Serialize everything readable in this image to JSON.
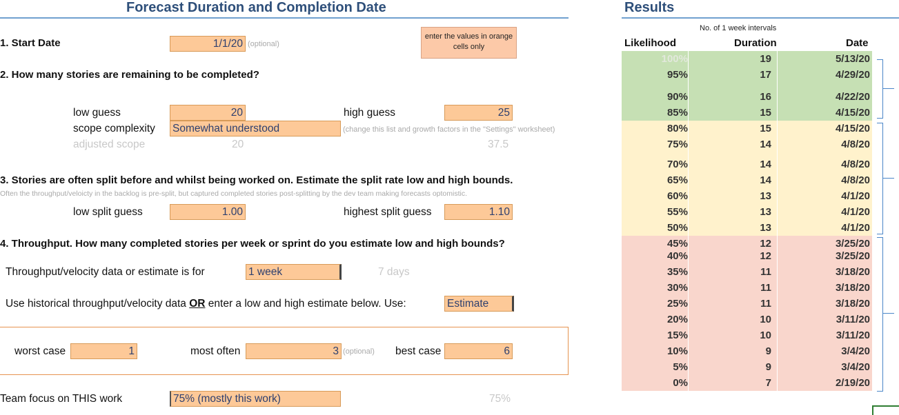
{
  "title": "Forecast Duration and Completion Date",
  "note": "enter the values in orange cells only",
  "q1": {
    "label": "1. Start Date",
    "value": "1/1/20",
    "hint": "(optional)"
  },
  "q2": {
    "label": "2. How many stories are remaining to be completed?",
    "low_label": "low guess",
    "low_value": "20",
    "high_label": "high guess",
    "high_value": "25",
    "complexity_label": "scope complexity",
    "complexity_value": "Somewhat understood",
    "complexity_hint": "(change this list and growth factors in the \"Settings\" worksheet)",
    "adjusted_label": "adjusted scope",
    "adjusted_low": "20",
    "adjusted_high": "37.5"
  },
  "q3": {
    "label": "3. Stories are often split before and whilst being worked on. Estimate the split rate low and high bounds.",
    "sub": "Often the throughput/veloicty in the backlog is pre-split, but captured completed stories post-splitting by the dev team making forecasts optomistic.",
    "low_label": "low split guess",
    "low_value": "1.00",
    "high_label": "highest split guess",
    "high_value": "1.10"
  },
  "q4": {
    "label": "4. Throughput. How many completed stories per week or sprint do you estimate low and high bounds?",
    "period_label": "Throughput/velocity data or estimate is for",
    "period_value": "1 week",
    "period_days": "7  days",
    "source_label_a": "Use historical throughput/velocity data ",
    "source_label_or": "OR",
    "source_label_b": " enter a low and high estimate below. Use:",
    "source_value": "Estimate",
    "worst_label": "worst case",
    "worst_value": "1",
    "often_label": "most often",
    "often_value": "3",
    "often_hint": "(optional)",
    "best_label": "best case",
    "best_value": "6"
  },
  "focus": {
    "label": "Team focus on THIS work",
    "value": "75% (mostly this work)",
    "pct": "75%"
  },
  "results": {
    "title": "Results",
    "interval_note": "No. of 1 week intervals",
    "col_likelihood": "Likelihood",
    "col_duration": "Duration",
    "col_date": "Date",
    "rows": [
      {
        "likelihood": "100%",
        "duration": "19",
        "date": "5/13/20",
        "band": "g"
      },
      {
        "likelihood": "95%",
        "duration": "17",
        "date": "4/29/20",
        "band": "g"
      },
      {
        "likelihood": "90%",
        "duration": "16",
        "date": "4/22/20",
        "band": "g"
      },
      {
        "likelihood": "85%",
        "duration": "15",
        "date": "4/15/20",
        "band": "g"
      },
      {
        "likelihood": "80%",
        "duration": "15",
        "date": "4/15/20",
        "band": "y"
      },
      {
        "likelihood": "75%",
        "duration": "14",
        "date": "4/8/20",
        "band": "y"
      },
      {
        "likelihood": "70%",
        "duration": "14",
        "date": "4/8/20",
        "band": "y"
      },
      {
        "likelihood": "65%",
        "duration": "14",
        "date": "4/8/20",
        "band": "y"
      },
      {
        "likelihood": "60%",
        "duration": "13",
        "date": "4/1/20",
        "band": "y"
      },
      {
        "likelihood": "55%",
        "duration": "13",
        "date": "4/1/20",
        "band": "y"
      },
      {
        "likelihood": "50%",
        "duration": "13",
        "date": "4/1/20",
        "band": "y"
      },
      {
        "likelihood": "45%",
        "duration": "12",
        "date": "3/25/20",
        "band": "r"
      },
      {
        "likelihood": "40%",
        "duration": "12",
        "date": "3/25/20",
        "band": "r"
      },
      {
        "likelihood": "35%",
        "duration": "11",
        "date": "3/18/20",
        "band": "r"
      },
      {
        "likelihood": "30%",
        "duration": "11",
        "date": "3/18/20",
        "band": "r"
      },
      {
        "likelihood": "25%",
        "duration": "11",
        "date": "3/18/20",
        "band": "r"
      },
      {
        "likelihood": "20%",
        "duration": "10",
        "date": "3/11/20",
        "band": "r"
      },
      {
        "likelihood": "15%",
        "duration": "10",
        "date": "3/11/20",
        "band": "r"
      },
      {
        "likelihood": "10%",
        "duration": "9",
        "date": "3/4/20",
        "band": "r"
      },
      {
        "likelihood": "5%",
        "duration": "9",
        "date": "3/4/20",
        "band": "r"
      },
      {
        "likelihood": "0%",
        "duration": "7",
        "date": "2/19/20",
        "band": "r"
      }
    ]
  }
}
